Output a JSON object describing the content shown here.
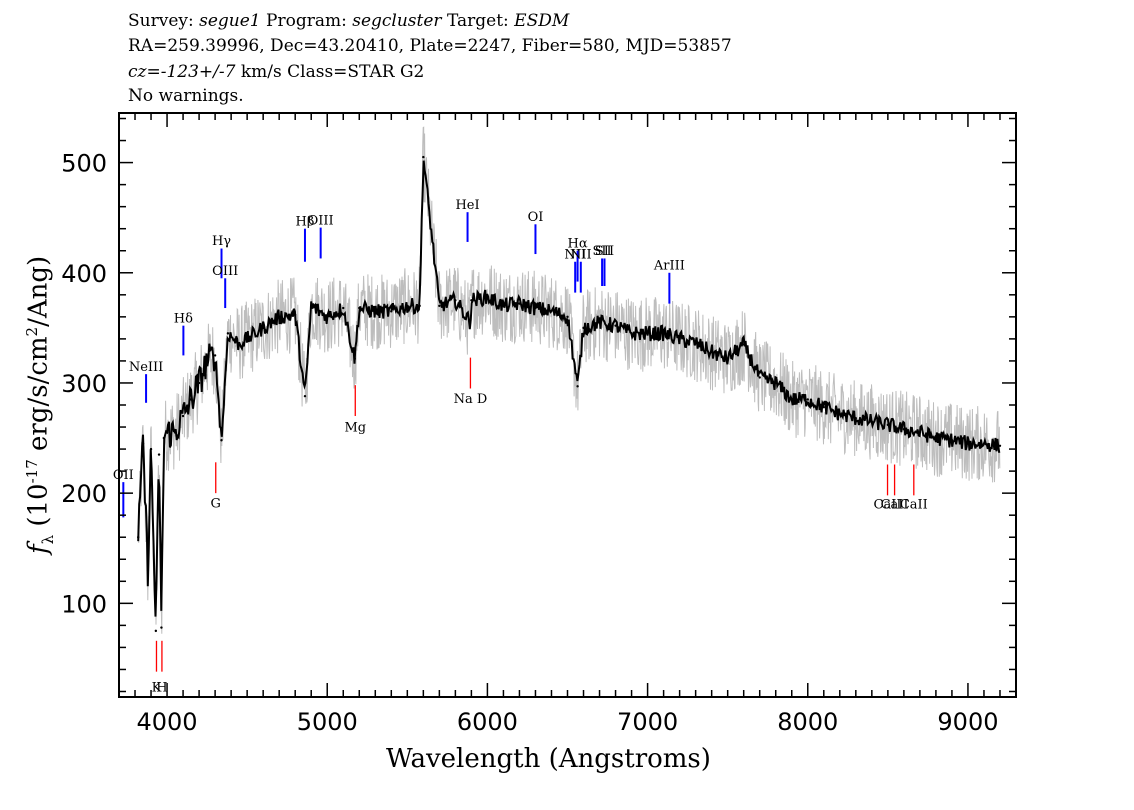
{
  "header": {
    "survey_label": "Survey:",
    "survey_value": "segue1",
    "program_label": "Program:",
    "program_value": "segcluster",
    "target_label": "Target:",
    "target_value": "ESDM",
    "line2": "RA=259.39996, Dec=43.20410, Plate=2247, Fiber=580, MJD=53857",
    "cz_label": "cz=",
    "cz_value": "-123+/-7",
    "cz_units_class": "km/s Class=STAR G2",
    "line4": "No warnings."
  },
  "chart_data": {
    "type": "line",
    "xlabel": "Wavelength (Angstroms)",
    "ylabel_symbol": "f",
    "ylabel_subscript": "λ",
    "ylabel_units_pre": "(10",
    "ylabel_exponent": "-17",
    "ylabel_units_mid": " erg/s/cm",
    "ylabel_exponent2": "2",
    "ylabel_units_post": "/Ang)",
    "xlim": [
      3700,
      9300
    ],
    "ylim": [
      15,
      545
    ],
    "xticks": [
      4000,
      5000,
      6000,
      7000,
      8000,
      9000
    ],
    "xtick_labels": [
      "4000",
      "5000",
      "6000",
      "7000",
      "8000",
      "9000"
    ],
    "yticks": [
      100,
      200,
      300,
      400,
      500
    ],
    "ytick_labels": [
      "100",
      "200",
      "300",
      "400",
      "500"
    ],
    "series": [
      {
        "color": "#000000",
        "x": [
          3820,
          3850,
          3880,
          3900,
          3930,
          3950,
          3965,
          3980,
          4000,
          4050,
          4100,
          4150,
          4200,
          4250,
          4300,
          4340,
          4380,
          4450,
          4500,
          4600,
          4700,
          4800,
          4861,
          4900,
          5000,
          5100,
          5172,
          5200,
          5300,
          5400,
          5500,
          5577,
          5600,
          5700,
          5800,
          5893,
          5900,
          6000,
          6100,
          6200,
          6300,
          6400,
          6500,
          6563,
          6600,
          6700,
          6800,
          6900,
          7000,
          7100,
          7200,
          7300,
          7400,
          7500,
          7600,
          7700,
          7800,
          7900,
          8000,
          8100,
          8200,
          8300,
          8400,
          8500,
          8600,
          8700,
          8800,
          8900,
          9000,
          9100,
          9200
        ],
        "values": [
          160,
          245,
          130,
          240,
          75,
          235,
          78,
          250,
          255,
          255,
          270,
          285,
          300,
          320,
          325,
          248,
          345,
          335,
          340,
          350,
          360,
          362,
          288,
          370,
          360,
          368,
          322,
          368,
          365,
          365,
          370,
          370,
          505,
          370,
          375,
          355,
          375,
          378,
          370,
          372,
          368,
          365,
          360,
          297,
          350,
          355,
          352,
          345,
          345,
          345,
          340,
          336,
          328,
          322,
          335,
          305,
          300,
          285,
          285,
          278,
          272,
          268,
          265,
          262,
          258,
          255,
          250,
          248,
          245,
          245,
          243
        ]
      }
    ],
    "noise_band_color": "#bdbdbd",
    "line_markers": [
      {
        "label": "Hγ",
        "x": 4340,
        "y1": 395,
        "y2": 422,
        "color": "#0000ff",
        "label_y": 425
      },
      {
        "label": "OIII",
        "x": 4363,
        "y1": 368,
        "y2": 395,
        "color": "#0000ff",
        "label_y": 398
      },
      {
        "label": "Hδ",
        "x": 4102,
        "y1": 325,
        "y2": 352,
        "color": "#0000ff",
        "label_y": 355
      },
      {
        "label": "NeIII",
        "x": 3869,
        "y1": 282,
        "y2": 308,
        "color": "#0000ff",
        "label_y": 311
      },
      {
        "label": "OII",
        "x": 3727,
        "y1": 178,
        "y2": 210,
        "color": "#0000ff",
        "label_y": 213
      },
      {
        "label": "Hβ",
        "x": 4861,
        "y1": 410,
        "y2": 440,
        "color": "#0000ff",
        "label_y": 443
      },
      {
        "label": "OIII",
        "x": 4959,
        "y1": 413,
        "y2": 441,
        "color": "#0000ff",
        "label_y": 444
      },
      {
        "label": "HeI",
        "x": 5876,
        "y1": 428,
        "y2": 455,
        "color": "#0000ff",
        "label_y": 458
      },
      {
        "label": "OI",
        "x": 6300,
        "y1": 417,
        "y2": 444,
        "color": "#0000ff",
        "label_y": 447
      },
      {
        "label": "NII",
        "x": 6548,
        "y1": 382,
        "y2": 410,
        "color": "#0000ff",
        "label_y": 413
      },
      {
        "label": "Hα",
        "x": 6563,
        "y1": 392,
        "y2": 420,
        "color": "#0000ff",
        "label_y": 423
      },
      {
        "label": "NII",
        "x": 6583,
        "y1": 382,
        "y2": 410,
        "color": "#0000ff",
        "label_y": 413
      },
      {
        "label": "SII",
        "x": 6716,
        "y1": 388,
        "y2": 413,
        "color": "#0000ff",
        "label_y": 416
      },
      {
        "label": "SII",
        "x": 6731,
        "y1": 388,
        "y2": 413,
        "color": "#0000ff",
        "label_y": 416
      },
      {
        "label": "ArIII",
        "x": 7136,
        "y1": 372,
        "y2": 400,
        "color": "#0000ff",
        "label_y": 403
      },
      {
        "label": "K",
        "x": 3934,
        "y1": 38,
        "y2": 66,
        "color": "#ff0000",
        "label_y": 20
      },
      {
        "label": "H",
        "x": 3968,
        "y1": 38,
        "y2": 66,
        "color": "#ff0000",
        "label_y": 20
      },
      {
        "label": "G",
        "x": 4304,
        "y1": 200,
        "y2": 228,
        "color": "#ff0000",
        "label_y": 187
      },
      {
        "label": "Mg",
        "x": 5175,
        "y1": 270,
        "y2": 298,
        "color": "#ff0000",
        "label_y": 256
      },
      {
        "label": "Na D",
        "x": 5894,
        "y1": 295,
        "y2": 323,
        "color": "#ff0000",
        "label_y": 282
      },
      {
        "label": "CaII",
        "x": 8498,
        "y1": 198,
        "y2": 226,
        "color": "#ff0000",
        "label_y": 186
      },
      {
        "label": "CaII",
        "x": 8542,
        "y1": 198,
        "y2": 226,
        "color": "#ff0000",
        "label_y": 186
      },
      {
        "label": "CaII",
        "x": 8662,
        "y1": 198,
        "y2": 226,
        "color": "#ff0000",
        "label_y": 186
      }
    ]
  }
}
